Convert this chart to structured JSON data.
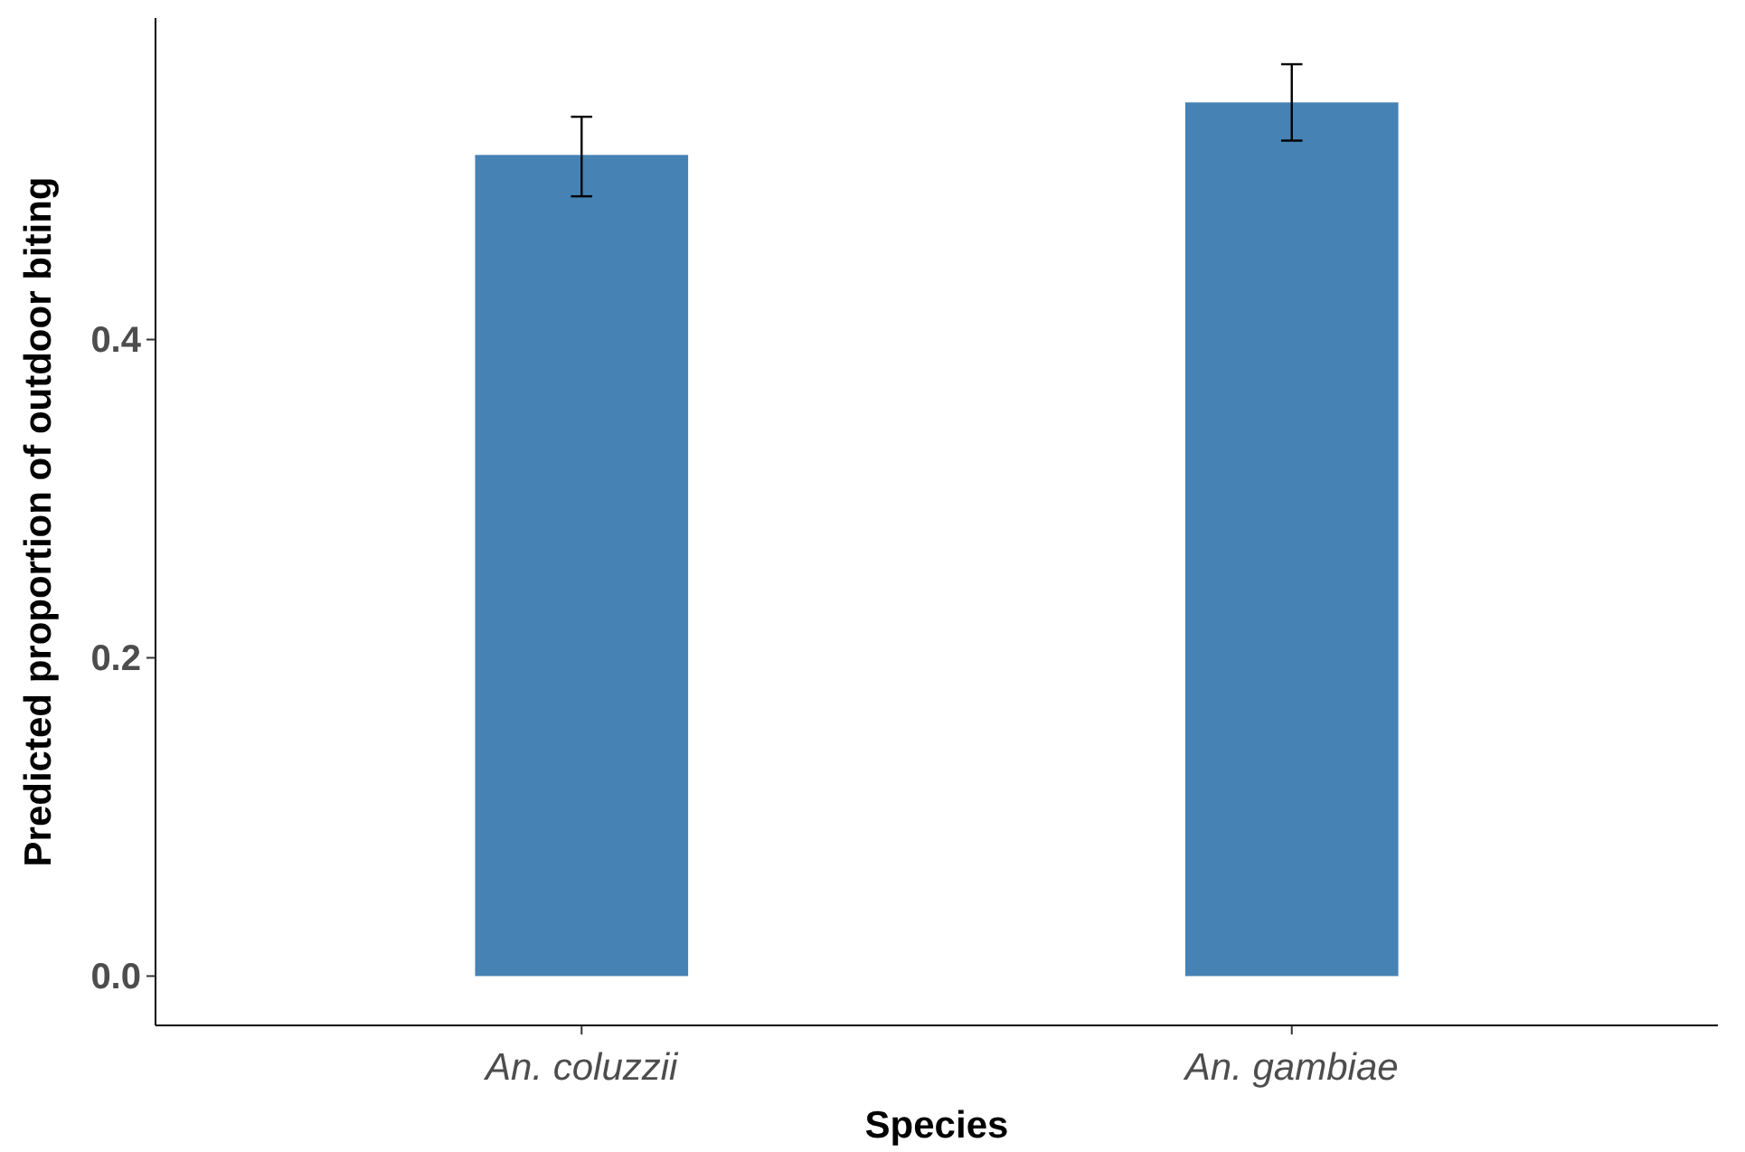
{
  "chart_data": {
    "type": "bar",
    "xlabel": "Species",
    "ylabel": "Predicted proportion of outdoor biting",
    "categories": [
      "An. coluzzii",
      "An. gambiae"
    ],
    "values": [
      0.516,
      0.549
    ],
    "errors": [
      [
        0.49,
        0.54
      ],
      [
        0.525,
        0.573
      ]
    ],
    "color": "#4682b4",
    "ylim": [
      -0.031,
      0.602
    ],
    "yticks": [
      {
        "value": 0,
        "label": "0.0"
      },
      0.2,
      0.4
    ],
    "grid": false
  }
}
